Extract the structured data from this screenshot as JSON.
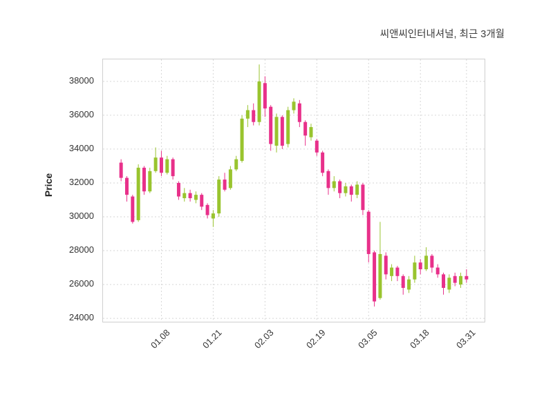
{
  "header": {
    "title": "씨앤씨인터내셔널, 최근 3개월"
  },
  "chart_data": {
    "type": "candlestick",
    "title": "씨앤씨인터내셔널, 최근 3개월",
    "ylabel": "Price",
    "ylim": [
      23800,
      39300
    ],
    "grid": true,
    "y_ticks": [
      24000,
      26000,
      28000,
      30000,
      32000,
      34000,
      36000,
      38000
    ],
    "x_tick_labels": [
      "01.08",
      "01.21",
      "02.03",
      "02.19",
      "03.05",
      "03.18",
      "03.31"
    ],
    "x_tick_indices": [
      7,
      16,
      25,
      34,
      43,
      52,
      60
    ],
    "colors": {
      "up": "#99C42E",
      "down": "#E8308A",
      "grid": "#d6d6d6",
      "axis_text": "#333333",
      "title_text": "#3d3d3d",
      "border": "#cfcfcf"
    },
    "candles": {
      "open": [
        33200,
        32300,
        31200,
        29800,
        32900,
        31500,
        32700,
        33500,
        32600,
        33400,
        32000,
        31100,
        31400,
        31000,
        31300,
        30700,
        29900,
        30200,
        32200,
        31700,
        32800,
        33300,
        35800,
        36300,
        35600,
        37900,
        36500,
        34200,
        35900,
        34300,
        36300,
        36700,
        35600,
        34700,
        34500,
        33800,
        32700,
        31700,
        32100,
        31400,
        31800,
        31300,
        31900,
        30300,
        27900,
        25200,
        27700,
        26500,
        27000,
        26500,
        25700,
        26300,
        27300,
        26900,
        27700,
        27000,
        26600,
        25700,
        26500,
        26000,
        26500
      ],
      "high": [
        33400,
        32400,
        31300,
        33100,
        33000,
        32900,
        34100,
        33900,
        33600,
        33500,
        32100,
        31700,
        31600,
        31500,
        31400,
        30800,
        30400,
        32400,
        32600,
        33000,
        33600,
        36000,
        36600,
        36700,
        39000,
        38300,
        36600,
        36100,
        36000,
        36500,
        37000,
        36900,
        35700,
        35500,
        34600,
        33900,
        32800,
        32400,
        32200,
        32000,
        31900,
        32100,
        32000,
        30400,
        28000,
        29700,
        27900,
        27200,
        27100,
        26600,
        26500,
        27700,
        27500,
        28200,
        27800,
        27200,
        26700,
        26600,
        26700,
        26700,
        26900
      ],
      "low": [
        32100,
        30900,
        29600,
        29700,
        31300,
        31400,
        32600,
        32400,
        32500,
        32200,
        31000,
        30900,
        30900,
        30800,
        30400,
        29900,
        29400,
        30000,
        31500,
        31600,
        32700,
        33200,
        35300,
        35400,
        35400,
        35900,
        33900,
        33800,
        34000,
        34100,
        36100,
        35300,
        34200,
        34500,
        33600,
        32400,
        31300,
        31500,
        31100,
        31200,
        30900,
        31100,
        30100,
        27300,
        24700,
        25100,
        26300,
        26200,
        26200,
        25400,
        25500,
        26100,
        26600,
        26800,
        26700,
        26400,
        25400,
        25500,
        25900,
        25800,
        26100
      ],
      "close": [
        32300,
        31300,
        29700,
        32900,
        31500,
        32700,
        33500,
        32600,
        33400,
        32400,
        31200,
        31400,
        31100,
        31300,
        30600,
        30100,
        30200,
        32200,
        31600,
        32800,
        33400,
        35800,
        36300,
        35600,
        38000,
        36400,
        34300,
        35900,
        34200,
        36300,
        36800,
        35600,
        34800,
        35300,
        33800,
        32600,
        31700,
        32100,
        31400,
        31800,
        31300,
        31900,
        30400,
        27800,
        25000,
        27800,
        26600,
        27000,
        26500,
        25800,
        26300,
        27300,
        26900,
        27700,
        27000,
        26600,
        25800,
        26400,
        26100,
        26500,
        26300
      ]
    }
  }
}
